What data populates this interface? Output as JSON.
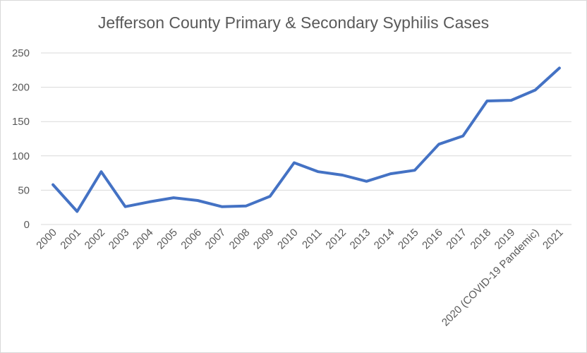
{
  "chart_data": {
    "type": "line",
    "title": "Jefferson County Primary & Secondary Syphilis Cases",
    "xlabel": "",
    "ylabel": "",
    "ylim": [
      0,
      250
    ],
    "yticks": [
      0,
      50,
      100,
      150,
      200,
      250
    ],
    "grid": true,
    "legend": "none",
    "categories": [
      "2000",
      "2001",
      "2002",
      "2003",
      "2004",
      "2005",
      "2006",
      "2007",
      "2008",
      "2009",
      "2010",
      "2011",
      "2012",
      "2013",
      "2014",
      "2015",
      "2016",
      "2017",
      "2018",
      "2019",
      "2020 (COVID-19 Pandemic)",
      "2021"
    ],
    "series": [
      {
        "name": "Primary & Secondary Syphilis Cases",
        "color": "#4472c4",
        "values": [
          58,
          19,
          77,
          26,
          33,
          39,
          35,
          26,
          27,
          41,
          90,
          77,
          72,
          63,
          74,
          79,
          117,
          129,
          180,
          181,
          196,
          228
        ]
      }
    ]
  }
}
